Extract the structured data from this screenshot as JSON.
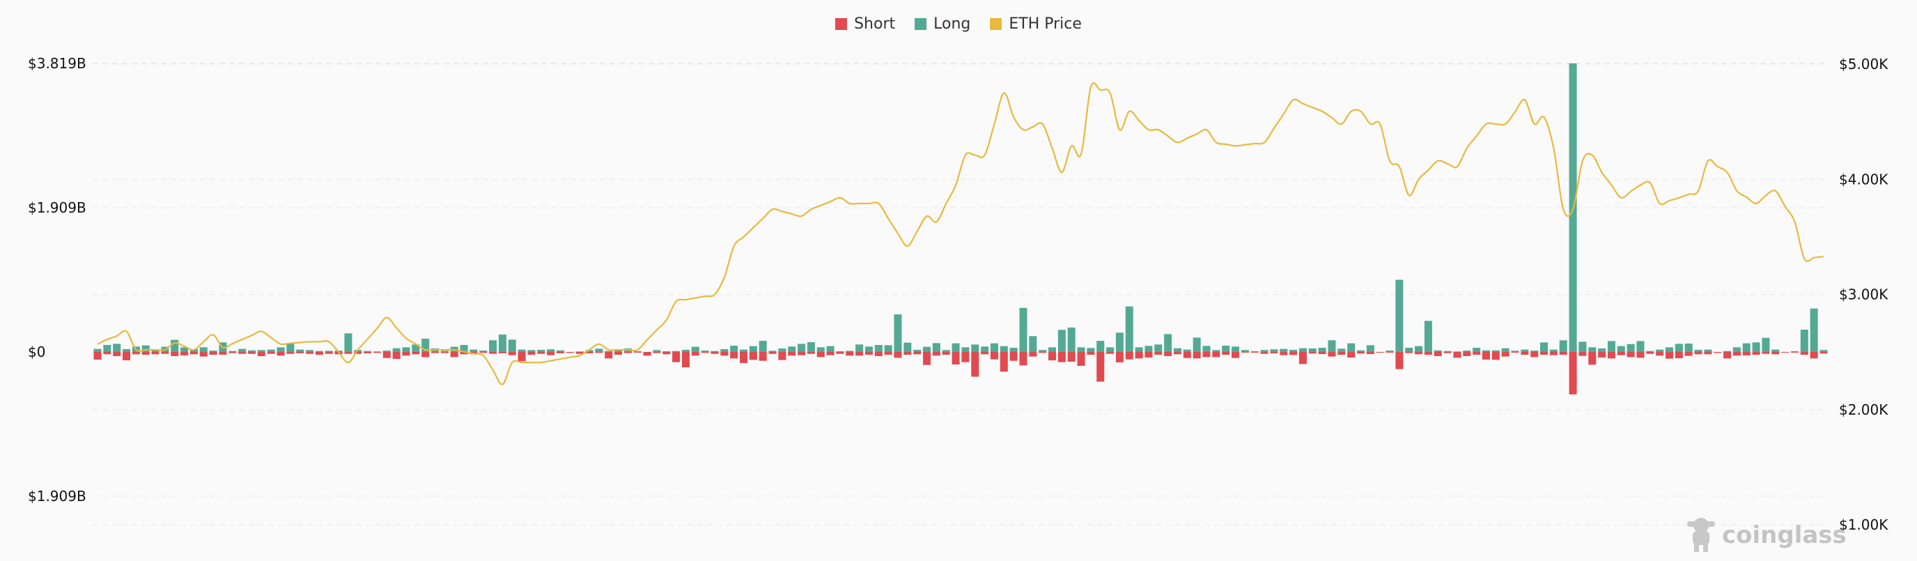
{
  "legend": {
    "short_label": "Short",
    "long_label": "Long",
    "price_label": "ETH Price"
  },
  "watermark": {
    "text": "coinglass",
    "icon": "coinglass-mascot-icon"
  },
  "colors": {
    "short": "#e04a50",
    "long": "#53a994",
    "price": "#e8b93c",
    "grid": "#e6e6e6"
  },
  "chart_data": {
    "type": "bar",
    "title": "",
    "xlabel": "",
    "ylabel": "",
    "grid": true,
    "legend_position": "top-center",
    "left_axis": {
      "unit": "USD millions",
      "ylim": [
        -1909,
        3819
      ],
      "tick_labels": [
        "$3.819B",
        "$1.909B",
        "$0",
        "$1.909B"
      ],
      "tick_values": [
        3819,
        1909,
        0,
        -1909
      ]
    },
    "right_axis": {
      "unit": "USD",
      "ylim": [
        1000,
        5000
      ],
      "tick_labels": [
        "$5.00K",
        "$4.00K",
        "$3.00K",
        "$2.00K",
        "$1.00K"
      ],
      "tick_values": [
        5000,
        4000,
        3000,
        2000,
        1000
      ]
    },
    "series": [
      {
        "name": "Long",
        "type": "bar",
        "axis": "left",
        "values": [
          40,
          92,
          107,
          37,
          71,
          86,
          34,
          68,
          160,
          61,
          37,
          61,
          18,
          126,
          12,
          40,
          21,
          25,
          31,
          61,
          114,
          31,
          25,
          12,
          15,
          18,
          246,
          25,
          12,
          6,
          18,
          49,
          61,
          98,
          175,
          46,
          15,
          68,
          92,
          31,
          18,
          154,
          230,
          163,
          31,
          25,
          28,
          34,
          21,
          0,
          6,
          25,
          43,
          12,
          18,
          46,
          9,
          0,
          25,
          9,
          12,
          28,
          68,
          18,
          12,
          37,
          83,
          31,
          77,
          147,
          15,
          46,
          71,
          107,
          129,
          61,
          77,
          9,
          15,
          98,
          71,
          92,
          89,
          497,
          123,
          28,
          68,
          117,
          25,
          114,
          61,
          98,
          71,
          114,
          77,
          55,
          583,
          209,
          25,
          61,
          292,
          322,
          61,
          52,
          147,
          61,
          255,
          602,
          61,
          80,
          98,
          236,
          49,
          31,
          190,
          80,
          25,
          83,
          71,
          25,
          9,
          25,
          34,
          40,
          28,
          49,
          46,
          55,
          154,
          43,
          114,
          21,
          89,
          0,
          18,
          955,
          55,
          77,
          411,
          21,
          12,
          6,
          18,
          55,
          21,
          21,
          49,
          15,
          31,
          18,
          126,
          31,
          154,
          3819,
          135,
          61,
          46,
          144,
          77,
          104,
          144,
          12,
          31,
          61,
          107,
          111,
          28,
          31,
          0,
          12,
          61,
          114,
          126,
          187,
          31,
          0,
          9,
          295,
          574,
          25
        ]
      },
      {
        "name": "Short",
        "type": "bar",
        "axis": "left",
        "values": [
          101,
          31,
          55,
          111,
          31,
          37,
          31,
          25,
          55,
          46,
          31,
          61,
          37,
          37,
          15,
          25,
          25,
          55,
          25,
          49,
          25,
          18,
          25,
          37,
          25,
          31,
          25,
          25,
          18,
          12,
          80,
          92,
          49,
          31,
          68,
          15,
          15,
          68,
          31,
          31,
          12,
          25,
          18,
          43,
          123,
          37,
          25,
          43,
          18,
          12,
          25,
          18,
          12,
          86,
          37,
          15,
          9,
          49,
          15,
          31,
          135,
          203,
          49,
          12,
          25,
          49,
          86,
          147,
          104,
          117,
          25,
          107,
          49,
          43,
          25,
          68,
          43,
          25,
          49,
          49,
          37,
          55,
          37,
          77,
          37,
          31,
          172,
          49,
          37,
          166,
          135,
          328,
          31,
          98,
          261,
          117,
          178,
          61,
          12,
          111,
          135,
          129,
          184,
          37,
          393,
          25,
          138,
          98,
          86,
          74,
          37,
          55,
          31,
          80,
          86,
          68,
          68,
          37,
          80,
          9,
          9,
          25,
          18,
          43,
          40,
          160,
          21,
          28,
          61,
          37,
          74,
          21,
          28,
          9,
          9,
          227,
          15,
          31,
          37,
          55,
          15,
          77,
          55,
          37,
          101,
          104,
          61,
          9,
          37,
          68,
          37,
          43,
          37,
          562,
          52,
          169,
          74,
          86,
          43,
          68,
          77,
          25,
          49,
          89,
          83,
          52,
          31,
          31,
          12,
          86,
          49,
          46,
          37,
          25,
          31,
          6,
          9,
          37,
          86,
          21
        ]
      },
      {
        "name": "ETH Price",
        "type": "line",
        "axis": "right",
        "values": [
          2570,
          2610,
          2640,
          2680,
          2520,
          2520,
          2520,
          2520,
          2580,
          2550,
          2520,
          2590,
          2650,
          2540,
          2575,
          2610,
          2645,
          2680,
          2625,
          2570,
          2577,
          2583,
          2590,
          2590,
          2590,
          2500,
          2410,
          2520,
          2613,
          2707,
          2800,
          2710,
          2620,
          2570,
          2520,
          2520,
          2520,
          2520,
          2503,
          2487,
          2470,
          2345,
          2220,
          2410,
          2410,
          2410,
          2410,
          2425,
          2440,
          2455,
          2470,
          2520,
          2570,
          2520,
          2520,
          2520,
          2520,
          2607,
          2693,
          2780,
          2940,
          2955,
          2970,
          2985,
          3000,
          3150,
          3420,
          3500,
          3580,
          3660,
          3740,
          3720,
          3700,
          3680,
          3740,
          3773,
          3807,
          3840,
          3790,
          3790,
          3790,
          3790,
          3660,
          3530,
          3420,
          3550,
          3680,
          3630,
          3790,
          3950,
          4210,
          4210,
          4210,
          4480,
          4750,
          4540,
          4430,
          4455,
          4480,
          4270,
          4060,
          4290,
          4220,
          4800,
          4775,
          4750,
          4430,
          4590,
          4510,
          4430,
          4430,
          4375,
          4320,
          4357,
          4393,
          4430,
          4320,
          4305,
          4290,
          4300,
          4310,
          4320,
          4443,
          4567,
          4690,
          4657,
          4623,
          4590,
          4535,
          4480,
          4590,
          4590,
          4480,
          4480,
          4160,
          4110,
          3860,
          4000,
          4080,
          4160,
          4135,
          4110,
          4270,
          4375,
          4480,
          4480,
          4480,
          4585,
          4690,
          4480,
          4540,
          4270,
          3740,
          3740,
          4160,
          4210,
          4060,
          3950,
          3840,
          3895,
          3950,
          3970,
          3790,
          3815,
          3840,
          3870,
          3900,
          4160,
          4110,
          4060,
          3900,
          3845,
          3790,
          3860,
          3900,
          3765,
          3630,
          3310,
          3320,
          3330
        ]
      }
    ]
  }
}
